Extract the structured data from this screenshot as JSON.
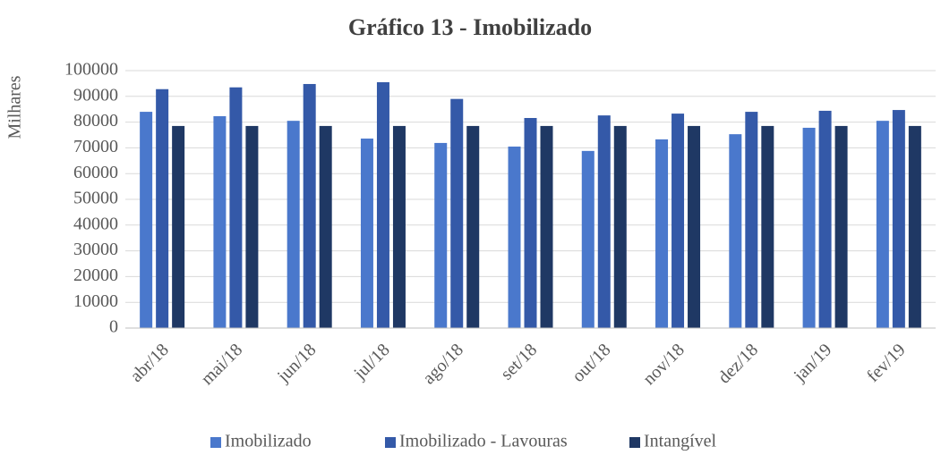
{
  "chart_data": {
    "type": "bar",
    "title": "Gráfico 13 - Imobilizado",
    "ylabel": "Milhares",
    "categories": [
      "abr/18",
      "mai/18",
      "jun/18",
      "jul/18",
      "ago/18",
      "set/18",
      "out/18",
      "nov/18",
      "dez/18",
      "jan/19",
      "fev/19"
    ],
    "series": [
      {
        "name": "Imobilizado",
        "color": "#4a78cc",
        "values": [
          84000,
          82300,
          80500,
          73600,
          71900,
          70500,
          68800,
          73300,
          75300,
          77800,
          80500
        ]
      },
      {
        "name": "Imobilizado - Lavouras",
        "color": "#3459a8",
        "values": [
          92800,
          93500,
          94800,
          95500,
          89000,
          81600,
          82600,
          83300,
          84000,
          84400,
          84700
        ]
      },
      {
        "name": "Intangível",
        "color": "#1f3864",
        "values": [
          78500,
          78500,
          78500,
          78500,
          78500,
          78500,
          78500,
          78500,
          78500,
          78500,
          78500
        ]
      }
    ],
    "ylim": [
      0,
      100000
    ],
    "yticks": [
      0,
      10000,
      20000,
      30000,
      40000,
      50000,
      60000,
      70000,
      80000,
      90000,
      100000
    ],
    "grid": true,
    "legend": "bottom"
  }
}
